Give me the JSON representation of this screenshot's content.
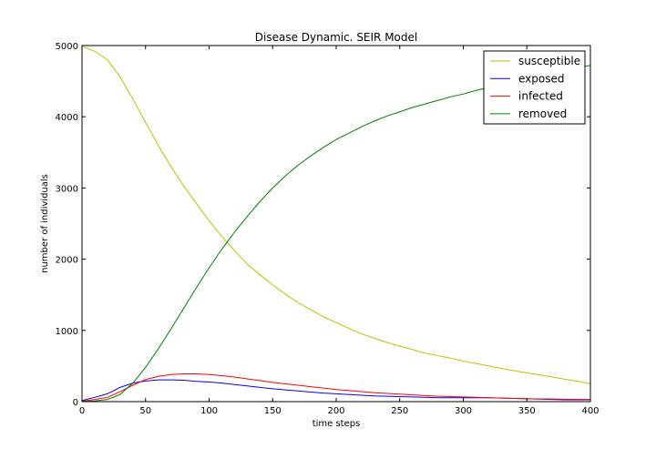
{
  "chart_data": {
    "type": "line",
    "title": "Disease Dynamic. SEIR Model",
    "xlabel": "time steps",
    "ylabel": "number of individuals",
    "xlim": [
      0,
      400
    ],
    "ylim": [
      0,
      5000
    ],
    "xticks": [
      0,
      50,
      100,
      150,
      200,
      250,
      300,
      350,
      400
    ],
    "yticks": [
      0,
      1000,
      2000,
      3000,
      4000,
      5000
    ],
    "grid": false,
    "legend_position": "top-right",
    "series": [
      {
        "name": "susceptible",
        "color": "#bfbf00",
        "x": [
          0,
          10,
          20,
          30,
          40,
          50,
          60,
          70,
          80,
          90,
          100,
          110,
          120,
          130,
          140,
          150,
          160,
          170,
          180,
          190,
          200,
          210,
          220,
          230,
          240,
          250,
          260,
          270,
          280,
          290,
          300,
          310,
          320,
          330,
          340,
          350,
          360,
          370,
          380,
          390,
          400
        ],
        "y": [
          4990,
          4920,
          4800,
          4560,
          4250,
          3920,
          3600,
          3300,
          3030,
          2780,
          2540,
          2320,
          2120,
          1930,
          1780,
          1640,
          1510,
          1390,
          1290,
          1190,
          1110,
          1030,
          950,
          890,
          830,
          780,
          730,
          680,
          645,
          610,
          570,
          535,
          500,
          465,
          435,
          405,
          375,
          345,
          315,
          285,
          250
        ]
      },
      {
        "name": "exposed",
        "color": "#0000ff",
        "x": [
          0,
          10,
          20,
          30,
          40,
          50,
          60,
          70,
          80,
          90,
          100,
          110,
          120,
          130,
          140,
          150,
          160,
          170,
          180,
          190,
          200,
          210,
          220,
          230,
          240,
          250,
          260,
          270,
          280,
          290,
          300,
          310,
          320,
          330,
          340,
          350,
          360,
          370,
          380,
          390,
          400
        ],
        "y": [
          15,
          60,
          110,
          200,
          260,
          290,
          305,
          305,
          300,
          285,
          275,
          260,
          240,
          220,
          200,
          180,
          165,
          150,
          135,
          120,
          110,
          100,
          90,
          80,
          75,
          70,
          65,
          60,
          55,
          55,
          55,
          55,
          55,
          50,
          45,
          40,
          35,
          30,
          25,
          25,
          25
        ]
      },
      {
        "name": "infected",
        "color": "#ff0000",
        "x": [
          0,
          10,
          20,
          30,
          40,
          50,
          60,
          70,
          80,
          90,
          100,
          110,
          120,
          130,
          140,
          150,
          160,
          170,
          180,
          190,
          200,
          210,
          220,
          230,
          240,
          250,
          260,
          270,
          280,
          290,
          300,
          310,
          320,
          330,
          340,
          350,
          360,
          370,
          380,
          390,
          400
        ],
        "y": [
          5,
          30,
          60,
          140,
          230,
          310,
          355,
          380,
          390,
          390,
          380,
          365,
          345,
          320,
          295,
          270,
          250,
          230,
          210,
          190,
          170,
          155,
          140,
          125,
          115,
          105,
          95,
          85,
          75,
          70,
          65,
          60,
          55,
          50,
          45,
          40,
          38,
          36,
          34,
          32,
          30
        ]
      },
      {
        "name": "removed",
        "color": "#008000",
        "x": [
          0,
          10,
          20,
          30,
          40,
          50,
          60,
          70,
          80,
          90,
          100,
          110,
          120,
          130,
          140,
          150,
          160,
          170,
          180,
          190,
          200,
          210,
          220,
          230,
          240,
          250,
          260,
          270,
          280,
          290,
          300,
          310,
          320,
          330,
          340,
          350,
          360,
          370,
          380,
          390,
          400
        ],
        "y": [
          0,
          10,
          30,
          100,
          260,
          480,
          740,
          1020,
          1310,
          1600,
          1880,
          2140,
          2380,
          2600,
          2810,
          3000,
          3170,
          3320,
          3450,
          3570,
          3680,
          3770,
          3860,
          3940,
          4010,
          4070,
          4130,
          4180,
          4230,
          4280,
          4320,
          4370,
          4410,
          4450,
          4500,
          4540,
          4580,
          4620,
          4660,
          4690,
          4720
        ]
      }
    ]
  }
}
